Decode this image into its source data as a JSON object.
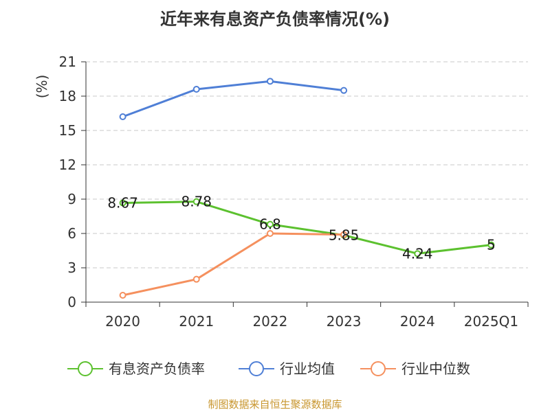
{
  "title": "近年来有息资产负债率情况(%)",
  "source": "制图数据来自恒生聚源数据库",
  "chart_data": {
    "type": "line",
    "title": "近年来有息资产负债率情况(%)",
    "ylabel": "(%)",
    "xlabel": "",
    "ylim": [
      0,
      21
    ],
    "yticks": [
      0,
      3,
      6,
      9,
      12,
      15,
      18,
      21
    ],
    "grid": true,
    "legend_position": "bottom",
    "categories": [
      "2020",
      "2021",
      "2022",
      "2023",
      "2024",
      "2025Q1"
    ],
    "series": [
      {
        "name": "有息资产负债率",
        "color": "#5cc12f",
        "values": [
          8.67,
          8.78,
          6.8,
          5.85,
          4.24,
          5
        ],
        "labels": [
          "8.67",
          "8.78",
          "6.8",
          "5.85",
          "4.24",
          "5"
        ]
      },
      {
        "name": "行业均值",
        "color": "#4f7fd6",
        "values": [
          16.2,
          18.6,
          19.3,
          18.5,
          null,
          null
        ]
      },
      {
        "name": "行业中位数",
        "color": "#f5905e",
        "values": [
          0.6,
          2.0,
          6.0,
          5.9,
          null,
          null
        ]
      }
    ]
  }
}
